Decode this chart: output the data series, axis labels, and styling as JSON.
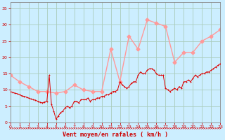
{
  "xlabel": "Vent moyen/en rafales ( km/h )",
  "bg_color": "#cceeff",
  "grid_color": "#aaccbb",
  "line_wind_color": "#dd0000",
  "line_gust_color": "#ff9999",
  "xlabel_color": "#cc0000",
  "tick_color": "#cc0000",
  "spine_color": "#888888",
  "ylim": [
    0,
    37
  ],
  "yticks": [
    0,
    5,
    10,
    15,
    20,
    25,
    30,
    35
  ],
  "xlim": [
    0,
    23
  ],
  "x_wind": [
    0,
    0.25,
    0.5,
    0.75,
    1,
    1.25,
    1.5,
    1.75,
    2,
    2.25,
    2.5,
    2.75,
    3,
    3.25,
    3.5,
    3.75,
    4,
    4.25,
    4.5,
    4.75,
    5,
    5.25,
    5.5,
    5.75,
    6,
    6.25,
    6.5,
    6.75,
    7,
    7.25,
    7.5,
    7.75,
    8,
    8.25,
    8.5,
    8.75,
    9,
    9.25,
    9.5,
    9.75,
    10,
    10.25,
    10.5,
    10.75,
    11,
    11.25,
    11.5,
    11.75,
    12,
    12.25,
    12.5,
    12.75,
    13,
    13.25,
    13.5,
    13.75,
    14,
    14.25,
    14.5,
    14.75,
    15,
    15.25,
    15.5,
    15.75,
    16,
    16.25,
    16.5,
    16.75,
    17,
    17.25,
    17.5,
    17.75,
    18,
    18.25,
    18.5,
    18.75,
    19,
    19.25,
    19.5,
    19.75,
    20,
    20.25,
    20.5,
    20.75,
    21,
    21.25,
    21.5,
    21.75,
    22,
    22.25,
    22.5,
    22.75,
    23
  ],
  "y_wind": [
    9.5,
    9.2,
    9.0,
    8.8,
    8.5,
    8.2,
    8.0,
    7.8,
    7.5,
    7.2,
    7.0,
    6.8,
    6.5,
    6.2,
    6.0,
    6.3,
    6.5,
    14.5,
    5.5,
    3.5,
    1.0,
    2.0,
    3.0,
    3.5,
    4.5,
    5.0,
    4.5,
    5.0,
    6.5,
    6.5,
    6.0,
    7.0,
    7.0,
    7.0,
    7.5,
    6.5,
    7.0,
    7.0,
    7.5,
    7.5,
    8.0,
    8.0,
    8.5,
    8.5,
    9.0,
    9.5,
    9.5,
    10.0,
    12.5,
    11.5,
    11.0,
    10.5,
    11.0,
    12.0,
    12.5,
    12.5,
    14.5,
    15.5,
    15.0,
    15.0,
    16.0,
    16.5,
    16.5,
    16.0,
    15.0,
    14.5,
    14.5,
    14.5,
    10.5,
    10.0,
    9.5,
    10.0,
    10.5,
    10.0,
    11.0,
    10.5,
    12.5,
    12.5,
    13.0,
    12.5,
    13.5,
    14.5,
    14.0,
    14.5,
    15.0,
    15.0,
    15.5,
    15.5,
    16.0,
    16.5,
    17.0,
    17.5,
    18.0
  ],
  "x_gust": [
    0,
    1,
    2,
    3,
    4,
    5,
    6,
    7,
    8,
    9,
    10,
    11,
    12,
    13,
    14,
    15,
    16,
    17,
    18,
    19,
    20,
    21,
    22,
    23
  ],
  "y_gust": [
    14.5,
    12.5,
    11.0,
    9.5,
    9.5,
    9.0,
    9.5,
    11.5,
    10.0,
    9.5,
    9.5,
    22.5,
    12.5,
    26.5,
    22.5,
    31.5,
    30.5,
    29.5,
    18.5,
    21.5,
    21.5,
    25.0,
    26.5,
    28.5
  ]
}
